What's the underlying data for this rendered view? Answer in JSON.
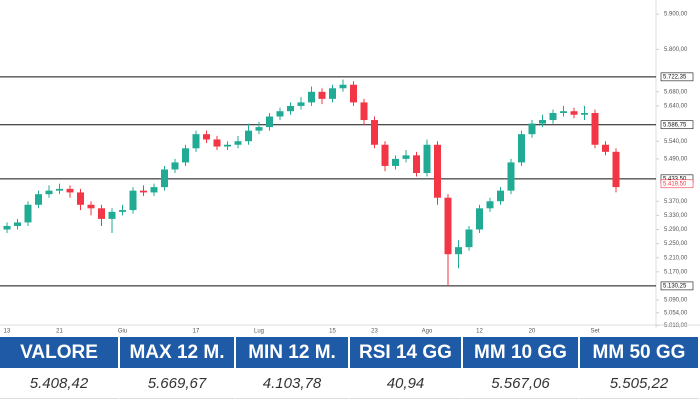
{
  "chart_data": {
    "type": "candlestick",
    "categories": [
      "13",
      null,
      null,
      null,
      null,
      "21",
      null,
      null,
      null,
      null,
      null,
      "Giu",
      null,
      null,
      null,
      null,
      null,
      null,
      "17",
      null,
      null,
      null,
      null,
      null,
      "Lug",
      null,
      null,
      null,
      null,
      null,
      null,
      "15",
      null,
      null,
      null,
      "23",
      null,
      null,
      null,
      null,
      "Ago",
      null,
      null,
      null,
      null,
      "12",
      null,
      null,
      null,
      null,
      "20",
      null,
      null,
      null,
      null,
      null,
      "Set",
      null,
      null
    ],
    "open": [
      5290,
      5300,
      5310,
      5360,
      5390,
      5400,
      5405,
      5395,
      5360,
      5350,
      5320,
      5340,
      5345,
      5400,
      5395,
      5410,
      5460,
      5480,
      5520,
      5560,
      5545,
      5525,
      5530,
      5540,
      5570,
      5580,
      5610,
      5625,
      5640,
      5650,
      5680,
      5660,
      5690,
      5700,
      5650,
      5600,
      5530,
      5470,
      5490,
      5500,
      5450,
      5530,
      5380,
      5220,
      5240,
      5290,
      5350,
      5370,
      5400,
      5480,
      5560,
      5590,
      5600,
      5620,
      5625,
      5615,
      5620,
      5530,
      5510
    ],
    "high": [
      5310,
      5320,
      5370,
      5400,
      5415,
      5420,
      5415,
      5405,
      5370,
      5360,
      5350,
      5360,
      5410,
      5415,
      5420,
      5470,
      5490,
      5530,
      5570,
      5570,
      5555,
      5540,
      5555,
      5590,
      5595,
      5620,
      5635,
      5650,
      5665,
      5695,
      5690,
      5700,
      5715,
      5710,
      5660,
      5610,
      5540,
      5500,
      5515,
      5510,
      5545,
      5540,
      5390,
      5260,
      5300,
      5360,
      5380,
      5410,
      5490,
      5570,
      5600,
      5615,
      5630,
      5640,
      5635,
      5640,
      5630,
      5540,
      5520
    ],
    "low": [
      5280,
      5290,
      5300,
      5350,
      5380,
      5390,
      5380,
      5345,
      5330,
      5300,
      5280,
      5330,
      5335,
      5385,
      5385,
      5400,
      5450,
      5470,
      5510,
      5535,
      5515,
      5515,
      5520,
      5530,
      5560,
      5570,
      5600,
      5615,
      5630,
      5640,
      5645,
      5650,
      5680,
      5640,
      5585,
      5520,
      5455,
      5460,
      5480,
      5440,
      5440,
      5360,
      5130,
      5180,
      5230,
      5280,
      5340,
      5360,
      5390,
      5470,
      5550,
      5580,
      5590,
      5610,
      5605,
      5600,
      5520,
      5500,
      5395
    ],
    "close": [
      5300,
      5310,
      5360,
      5390,
      5400,
      5405,
      5395,
      5360,
      5350,
      5320,
      5340,
      5345,
      5400,
      5395,
      5410,
      5460,
      5480,
      5520,
      5560,
      5545,
      5525,
      5530,
      5540,
      5570,
      5580,
      5610,
      5625,
      5640,
      5650,
      5680,
      5660,
      5690,
      5700,
      5650,
      5600,
      5530,
      5470,
      5490,
      5500,
      5450,
      5530,
      5380,
      5220,
      5240,
      5290,
      5350,
      5370,
      5400,
      5480,
      5560,
      5590,
      5600,
      5620,
      5625,
      5615,
      5620,
      5530,
      5510,
      5410
    ],
    "up_color": "#22ab94",
    "down_color": "#f23645",
    "ylim": [
      5011,
      5940
    ],
    "yticks": [
      {
        "value": 5900,
        "label": "5.900,00"
      },
      {
        "value": 5800,
        "label": "5.800,00"
      },
      {
        "value": 5680,
        "label": "5.680,00"
      },
      {
        "value": 5640,
        "label": "5.640,00"
      },
      {
        "value": 5540,
        "label": "5.540,00"
      },
      {
        "value": 5490,
        "label": "5.490,00"
      },
      {
        "value": 5370,
        "label": "5.370,00"
      },
      {
        "value": 5330,
        "label": "5.330,00"
      },
      {
        "value": 5290,
        "label": "5.290,00"
      },
      {
        "value": 5250,
        "label": "5.250,00"
      },
      {
        "value": 5210,
        "label": "5.210,00"
      },
      {
        "value": 5170,
        "label": "5.170,00"
      },
      {
        "value": 5090,
        "label": "5.090,00"
      },
      {
        "value": 5054,
        "label": "5.054,00"
      },
      {
        "value": 5018,
        "label": "5.018,00"
      }
    ],
    "levels": [
      {
        "value": 5722.35,
        "label": "5.722,35"
      },
      {
        "value": 5586.75,
        "label": "5.586,75"
      },
      {
        "value": 5433.5,
        "label": "5.433,50"
      },
      {
        "value": 5130.25,
        "label": "5.130,25"
      }
    ],
    "last_price": {
      "value": 5419.5,
      "label": "5.419,50"
    }
  },
  "table": {
    "headers": [
      "VALORE",
      "MAX 12 M.",
      "MIN 12 M.",
      "RSI 14 GG",
      "MM 10 GG",
      "MM 50 GG"
    ],
    "rows": [
      [
        "5.408,42",
        "5.669,67",
        "4.103,78",
        "40,94",
        "5.567,06",
        "5.505,22"
      ]
    ]
  }
}
